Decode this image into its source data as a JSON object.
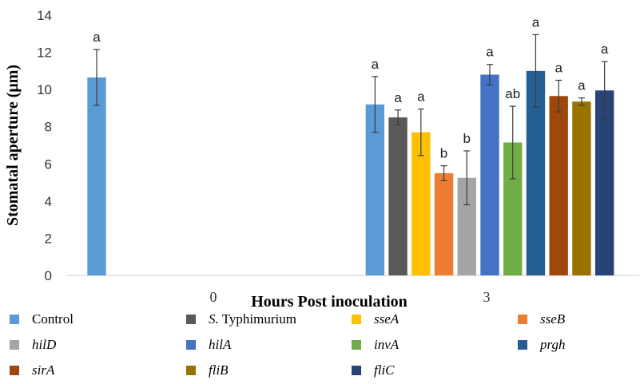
{
  "chart_data": {
    "type": "bar",
    "categories": [
      "0",
      "3"
    ],
    "xlabel": "Hours Post inoculation",
    "ylabel": "Stomatal aperture (μm)",
    "ylim": [
      0,
      14
    ],
    "yticks": [
      0,
      2,
      4,
      6,
      8,
      10,
      12,
      14
    ],
    "grid": false,
    "legend_position": "bottom",
    "series": [
      {
        "name": "Control",
        "color": "#5B9BD5",
        "italic": false,
        "values": [
          10.65,
          9.2
        ],
        "errors": [
          1.5,
          1.5
        ],
        "labels": [
          "a",
          "a"
        ]
      },
      {
        "name": "S. Typhimurium",
        "name_italic_part": "S.",
        "name_rest": " Typhimurium",
        "color": "#595959",
        "italic": false,
        "values": [
          null,
          8.5
        ],
        "errors": [
          null,
          0.4
        ],
        "labels": [
          "",
          "a"
        ]
      },
      {
        "name": "sseA",
        "color": "#FFC000",
        "italic": true,
        "values": [
          null,
          7.7
        ],
        "errors": [
          null,
          1.25
        ],
        "labels": [
          "",
          "a"
        ]
      },
      {
        "name": "sseB",
        "color": "#ED7D31",
        "italic": true,
        "values": [
          null,
          5.5
        ],
        "errors": [
          null,
          0.4
        ],
        "labels": [
          "",
          "b"
        ]
      },
      {
        "name": "hilD",
        "color": "#A5A5A5",
        "italic": true,
        "values": [
          null,
          5.25
        ],
        "errors": [
          null,
          1.45
        ],
        "labels": [
          "",
          "b"
        ]
      },
      {
        "name": "hilA",
        "color": "#4472C4",
        "italic": true,
        "values": [
          null,
          10.8
        ],
        "errors": [
          null,
          0.55
        ],
        "labels": [
          "",
          "a"
        ]
      },
      {
        "name": "invA",
        "color": "#70AD47",
        "italic": true,
        "values": [
          null,
          7.15
        ],
        "errors": [
          null,
          1.95
        ],
        "labels": [
          "",
          "ab"
        ]
      },
      {
        "name": "prgh",
        "color": "#255E91",
        "italic": true,
        "values": [
          null,
          11.0
        ],
        "errors": [
          null,
          1.95
        ],
        "labels": [
          "",
          "a"
        ]
      },
      {
        "name": "sirA",
        "color": "#9E480E",
        "italic": true,
        "values": [
          null,
          9.65
        ],
        "errors": [
          null,
          0.85
        ],
        "labels": [
          "",
          "a"
        ]
      },
      {
        "name": "fliB",
        "color": "#997300",
        "italic": true,
        "values": [
          null,
          9.35
        ],
        "errors": [
          null,
          0.2
        ],
        "labels": [
          "",
          "a"
        ]
      },
      {
        "name": "fliC",
        "color": "#264478",
        "italic": true,
        "values": [
          null,
          9.95
        ],
        "errors": [
          null,
          1.55
        ],
        "labels": [
          "",
          "a"
        ]
      }
    ]
  }
}
